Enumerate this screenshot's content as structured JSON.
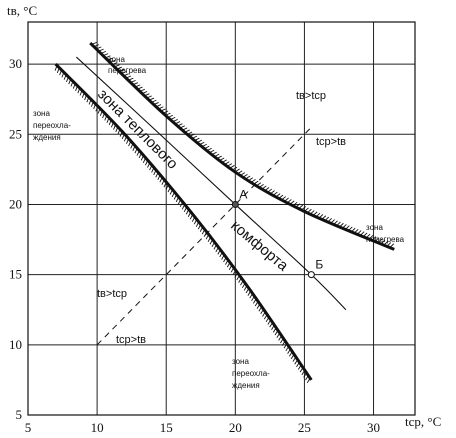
{
  "chart_data": {
    "type": "line",
    "xlabel": "tср, °С",
    "ylabel": "tв, °С",
    "xlim": [
      5,
      33
    ],
    "ylim": [
      5,
      33
    ],
    "x_ticks": [
      "5",
      "10",
      "15",
      "20",
      "25",
      "30"
    ],
    "y_ticks": [
      "5",
      "10",
      "15",
      "20",
      "25",
      "30"
    ],
    "grid": true,
    "series": [
      {
        "x": [
          9.5,
          15,
          20,
          25,
          31.5
        ],
        "y": [
          31.5,
          26.3,
          22.3,
          19.5,
          16.8
        ]
      },
      {
        "x": [
          7,
          12,
          17,
          21,
          25.5
        ],
        "y": [
          30,
          25,
          19.2,
          14,
          7.5
        ]
      },
      {
        "x": [
          8.5,
          14,
          20,
          25.5,
          28
        ],
        "y": [
          30.5,
          25.5,
          20,
          15,
          12.5
        ]
      },
      {
        "x": [
          10,
          25.5
        ],
        "y": [
          10,
          25.5
        ]
      }
    ],
    "points": [
      {
        "label": "А",
        "x": 20,
        "y": 20
      },
      {
        "label": "Б",
        "x": 25.5,
        "y": 15
      }
    ],
    "annotations": {
      "zone_overheat_top": [
        "зона",
        "перегрева"
      ],
      "zone_overheat_right": [
        "зона",
        "перегрева"
      ],
      "zone_overcool_left": [
        "зона",
        "переохла-",
        "ждения"
      ],
      "zone_overcool_bottom": [
        "зона",
        "переохла-",
        "ждения"
      ],
      "comfort_upper": "зона теплового",
      "comfort_lower": "комфорта",
      "ineq_upper_left": "tв>tср",
      "ineq_upper_right": "tср>tв",
      "ineq_lower_left": "tв>tср",
      "ineq_lower_right": "tср>tв"
    }
  }
}
